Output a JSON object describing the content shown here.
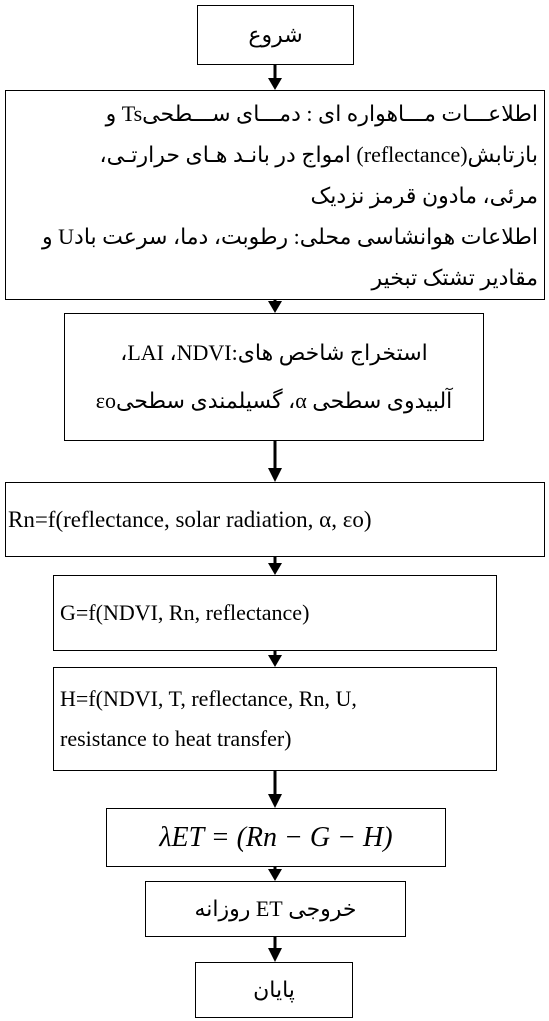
{
  "nodes": [
    {
      "lines": [
        "شروع"
      ]
    },
    {
      "lines": [
        "اطلاعـــات مـــاهواره ای : دمـــای ســـطحیTs و",
        "بازتابش(reflectance) امواج در بانـد هـای حرارتـی،",
        "مرئی، مادون قرمز نزدیک",
        "اطلاعات هوانشاسی محلی: رطوبت، دما، سرعت بادU و",
        "مقادیر تشتک تبخیر"
      ]
    },
    {
      "lines": [
        "استخراج شاخص های:LAI ،NDVI،",
        "آلبیدوی سطحی α، گسیلمندی سطحیεo"
      ]
    },
    {
      "lines": [
        "Rn=f(reflectance, solar radiation, α, εo)"
      ]
    },
    {
      "lines": [
        "G=f(NDVI, Rn, reflectance)"
      ]
    },
    {
      "lines": [
        "H=f(NDVI, T, reflectance, Rn, U,",
        "resistance to heat transfer)"
      ]
    },
    {
      "lines": [
        "λET = (Rn − G − H)"
      ]
    },
    {
      "lines": [
        "خروجی ET روزانه"
      ]
    },
    {
      "lines": [
        "پایان"
      ]
    }
  ]
}
